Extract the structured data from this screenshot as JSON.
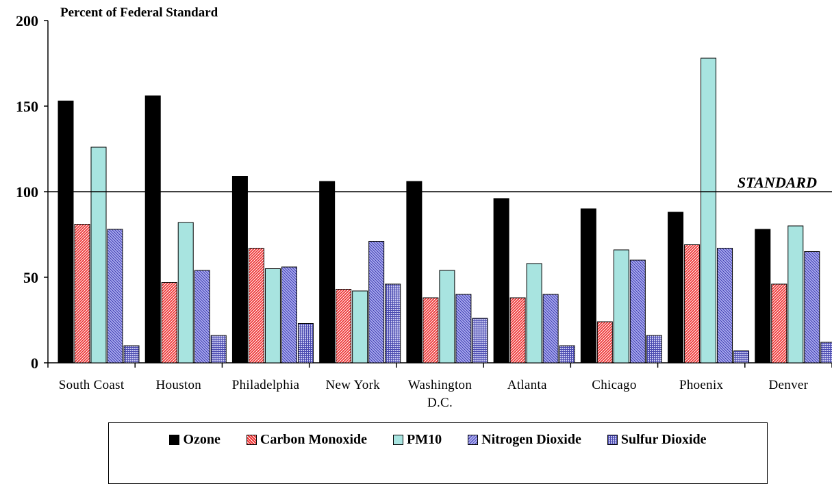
{
  "chart_data": {
    "type": "bar",
    "title": "",
    "ylabel": "Percent of Federal Standard",
    "xlabel": "",
    "ylim": [
      0,
      200
    ],
    "yticks": [
      "0",
      "50",
      "100",
      "150",
      "200"
    ],
    "categories": [
      [
        "South Coast"
      ],
      [
        "Houston"
      ],
      [
        "Philadelphia"
      ],
      [
        "New York"
      ],
      [
        "Washington",
        "D.C."
      ],
      [
        "Atlanta"
      ],
      [
        "Chicago"
      ],
      [
        "Phoenix"
      ],
      [
        "Denver"
      ]
    ],
    "series": [
      {
        "name": "Ozone",
        "color": "#000000",
        "pattern": "solid",
        "values": [
          153,
          156,
          109,
          106,
          106,
          96,
          90,
          88,
          78
        ]
      },
      {
        "name": "Carbon Monoxide",
        "color": "#ee3333",
        "pattern": "diag",
        "values": [
          81,
          47,
          67,
          43,
          38,
          38,
          24,
          69,
          46
        ]
      },
      {
        "name": "PM10",
        "color": "#a8e4e0",
        "pattern": "solid",
        "values": [
          126,
          82,
          55,
          42,
          54,
          58,
          66,
          178,
          80
        ]
      },
      {
        "name": "Nitrogen Dioxide",
        "color": "#aeaef0",
        "pattern": "diag-blue",
        "values": [
          78,
          54,
          56,
          71,
          40,
          40,
          60,
          67,
          65
        ]
      },
      {
        "name": "Sulfur Dioxide",
        "color": "#b0b0e8",
        "pattern": "grid",
        "values": [
          10,
          16,
          23,
          46,
          26,
          10,
          16,
          7,
          12
        ]
      }
    ],
    "reference_line": {
      "value": 100,
      "label": "STANDARD"
    },
    "grid": false,
    "legend_position": "bottom"
  }
}
